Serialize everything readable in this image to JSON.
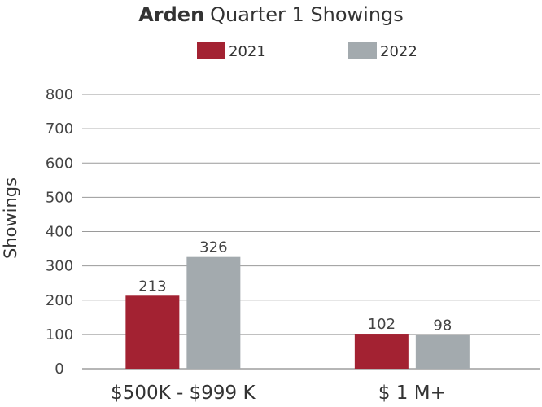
{
  "chart_data": {
    "type": "bar",
    "title_bold": "Arden",
    "title_rest": "Quarter 1 Showings",
    "ylabel": "Showings",
    "xlabel": "",
    "categories": [
      "$500K - $999 K",
      "$ 1 M+"
    ],
    "series": [
      {
        "name": "2021",
        "color": "#A32232",
        "values": [
          213,
          102
        ]
      },
      {
        "name": "2022",
        "color": "#A3AAAE",
        "values": [
          326,
          98
        ]
      }
    ],
    "data_labels": [
      [
        "213",
        "102"
      ],
      [
        "326",
        "98"
      ]
    ],
    "ylim": [
      0,
      800
    ],
    "yticks": [
      0,
      100,
      200,
      300,
      400,
      500,
      600,
      700,
      800
    ],
    "grid": true,
    "legend_position": "top-center"
  }
}
